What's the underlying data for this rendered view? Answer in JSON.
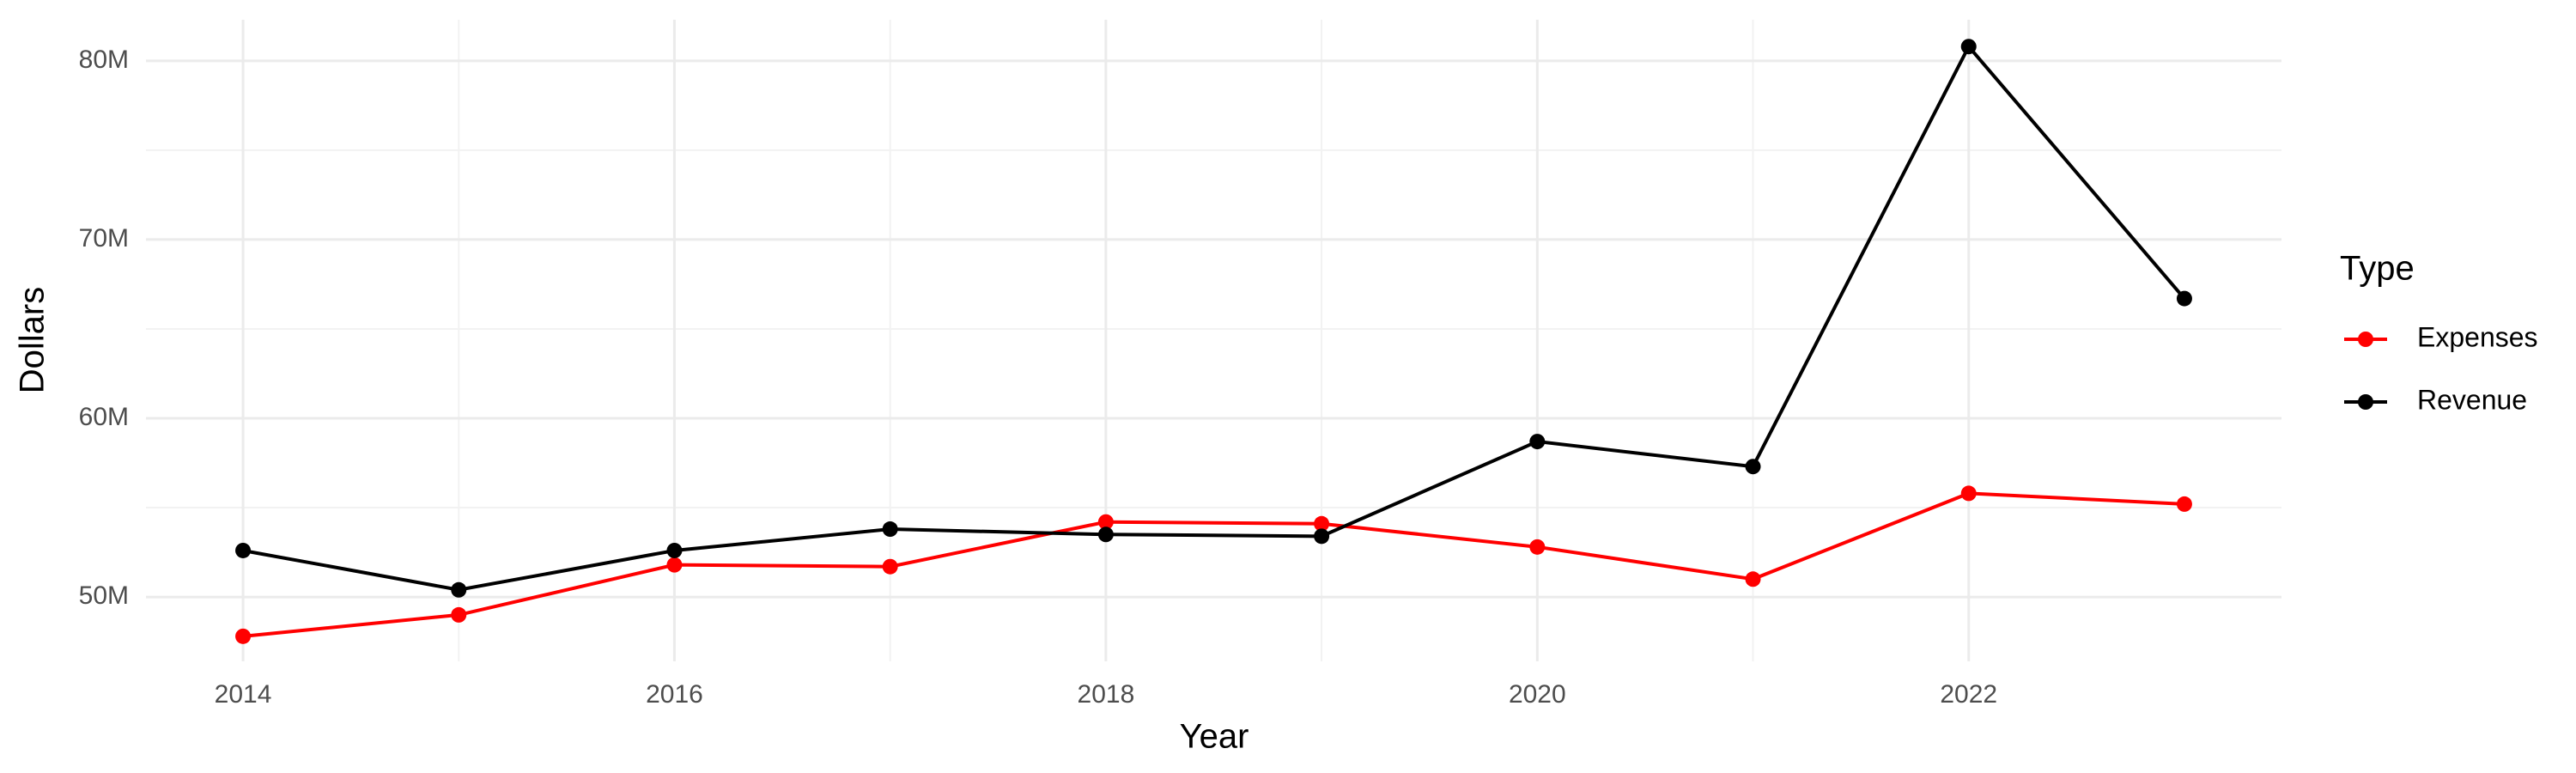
{
  "chart_data": {
    "type": "line",
    "x_label": "Year",
    "y_label": "Dollars",
    "legend_title": "Type",
    "x": [
      2014,
      2015,
      2016,
      2017,
      2018,
      2019,
      2020,
      2021,
      2022,
      2023
    ],
    "series": [
      {
        "name": "Expenses",
        "color": "#ff0000",
        "values": [
          47800000,
          49000000,
          51800000,
          51700000,
          54200000,
          54100000,
          52800000,
          51000000,
          55800000,
          55200000
        ]
      },
      {
        "name": "Revenue",
        "color": "#000000",
        "values": [
          52600000,
          50400000,
          52600000,
          53800000,
          53500000,
          53400000,
          58700000,
          57300000,
          80800000,
          66700000
        ]
      }
    ],
    "xlim": [
      2013.55,
      2023.45
    ],
    "xticks": [
      2014,
      2016,
      2018,
      2020,
      2022
    ],
    "ylim": [
      46400000,
      82300000
    ],
    "yticks": [
      {
        "value": 50000000,
        "label": "50M"
      },
      {
        "value": 60000000,
        "label": "60M"
      },
      {
        "value": 70000000,
        "label": "70M"
      },
      {
        "value": 80000000,
        "label": "80M"
      }
    ],
    "grid": true,
    "legend": "right"
  }
}
